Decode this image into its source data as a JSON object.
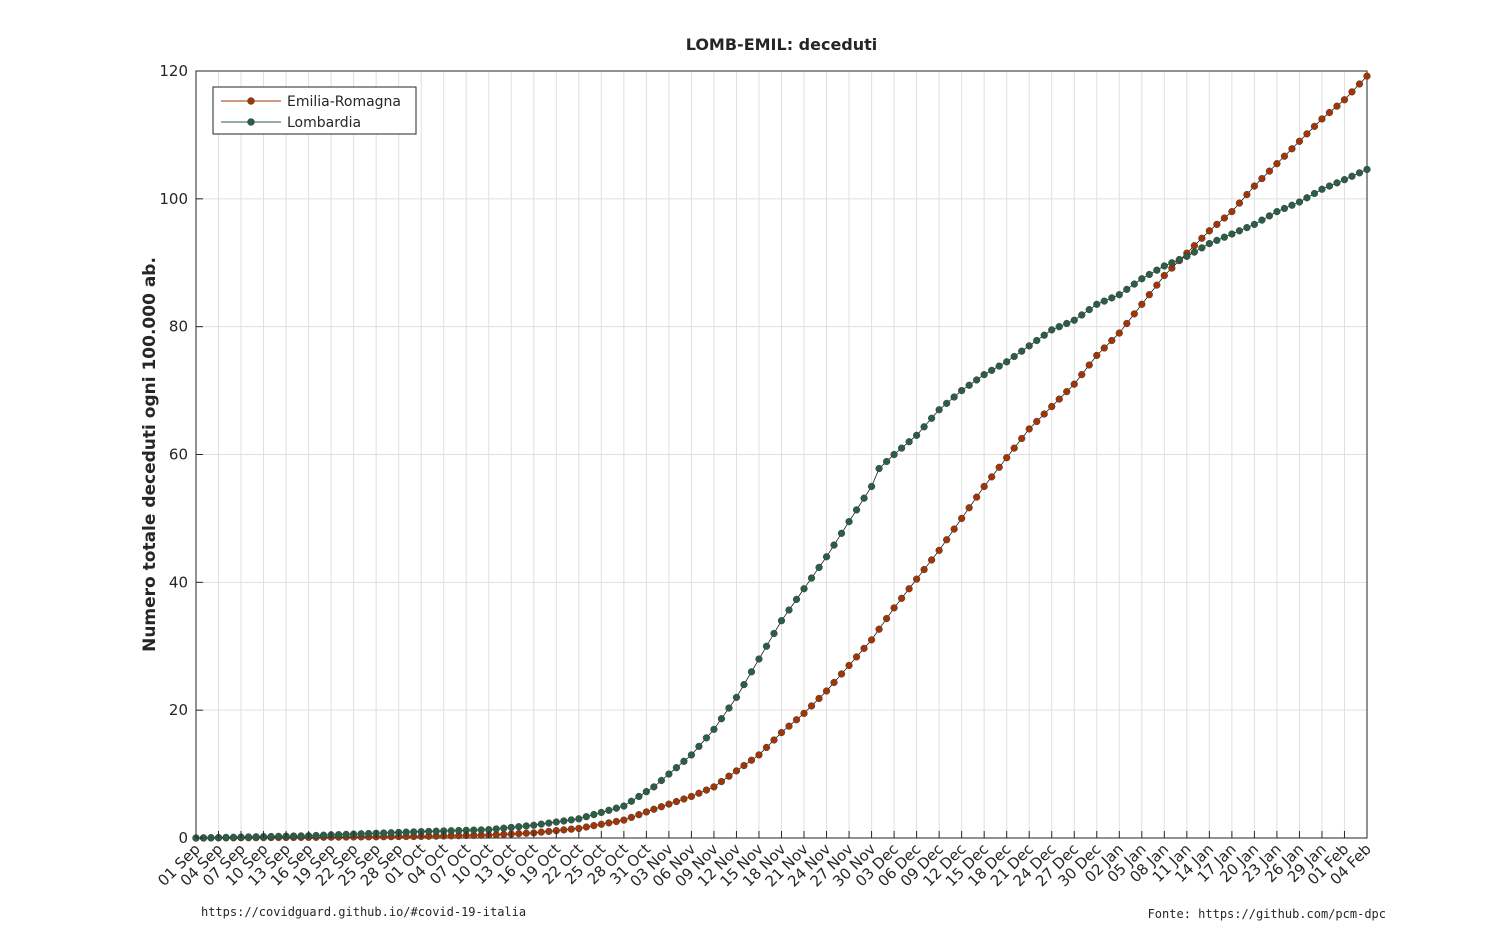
{
  "chart_data": {
    "type": "line",
    "title": "LOMB-EMIL: deceduti",
    "xlabel": "",
    "ylabel": "Numero totale deceduti ogni 100.000 ab.",
    "start_date": "2020-09-01",
    "end_date": "2021-02-04",
    "x_tick_labels": [
      "01 Sep",
      "04 Sep",
      "07 Sep",
      "10 Sep",
      "13 Sep",
      "16 Sep",
      "19 Sep",
      "22 Sep",
      "25 Sep",
      "28 Sep",
      "01 Oct",
      "04 Oct",
      "07 Oct",
      "10 Oct",
      "13 Oct",
      "16 Oct",
      "19 Oct",
      "22 Oct",
      "25 Oct",
      "28 Oct",
      "31 Oct",
      "03 Nov",
      "06 Nov",
      "09 Nov",
      "12 Nov",
      "15 Nov",
      "18 Nov",
      "21 Nov",
      "24 Nov",
      "27 Nov",
      "30 Nov",
      "03 Dec",
      "06 Dec",
      "09 Dec",
      "12 Dec",
      "15 Dec",
      "18 Dec",
      "21 Dec",
      "24 Dec",
      "27 Dec",
      "30 Dec",
      "02 Jan",
      "05 Jan",
      "08 Jan",
      "11 Jan",
      "14 Jan",
      "17 Jan",
      "20 Jan",
      "23 Jan",
      "26 Jan",
      "29 Jan",
      "01 Feb",
      "04 Feb"
    ],
    "y_ticks": [
      0,
      20,
      40,
      60,
      80,
      100,
      120
    ],
    "ylim": [
      0,
      120
    ],
    "grid": true,
    "legend_position": "top-left",
    "series": [
      {
        "name": "Emilia-Romagna",
        "color": "#a23505",
        "points": [
          [
            "2020-09-01",
            0
          ],
          [
            "2020-09-16",
            0.1
          ],
          [
            "2020-10-01",
            0.25
          ],
          [
            "2020-10-10",
            0.45
          ],
          [
            "2020-10-16",
            0.8
          ],
          [
            "2020-10-22",
            1.5
          ],
          [
            "2020-10-28",
            2.8
          ],
          [
            "2020-11-01",
            4.5
          ],
          [
            "2020-11-06",
            6.5
          ],
          [
            "2020-11-09",
            8.0
          ],
          [
            "2020-11-12",
            10.5
          ],
          [
            "2020-11-15",
            13.0
          ],
          [
            "2020-11-18",
            16.5
          ],
          [
            "2020-11-21",
            19.5
          ],
          [
            "2020-11-24",
            23.0
          ],
          [
            "2020-11-27",
            27.0
          ],
          [
            "2020-11-30",
            31.0
          ],
          [
            "2020-12-03",
            36.0
          ],
          [
            "2020-12-06",
            40.5
          ],
          [
            "2020-12-09",
            45.0
          ],
          [
            "2020-12-12",
            50.0
          ],
          [
            "2020-12-15",
            55.0
          ],
          [
            "2020-12-18",
            59.5
          ],
          [
            "2020-12-21",
            64.0
          ],
          [
            "2020-12-24",
            67.5
          ],
          [
            "2020-12-27",
            71.0
          ],
          [
            "2020-12-30",
            75.5
          ],
          [
            "2021-01-02",
            79.0
          ],
          [
            "2021-01-05",
            83.5
          ],
          [
            "2021-01-08",
            88.0
          ],
          [
            "2021-01-11",
            91.5
          ],
          [
            "2021-01-14",
            95.0
          ],
          [
            "2021-01-17",
            98.0
          ],
          [
            "2021-01-20",
            102.0
          ],
          [
            "2021-01-23",
            105.5
          ],
          [
            "2021-01-26",
            109.0
          ],
          [
            "2021-01-29",
            112.5
          ],
          [
            "2021-02-01",
            115.5
          ],
          [
            "2021-02-04",
            119.2
          ]
        ]
      },
      {
        "name": "Lombardia",
        "color": "#2a5e45",
        "points": [
          [
            "2020-09-01",
            0
          ],
          [
            "2020-09-16",
            0.35
          ],
          [
            "2020-10-01",
            1.0
          ],
          [
            "2020-10-10",
            1.3
          ],
          [
            "2020-10-16",
            2.0
          ],
          [
            "2020-10-22",
            3.0
          ],
          [
            "2020-10-28",
            5.0
          ],
          [
            "2020-11-01",
            8.0
          ],
          [
            "2020-11-06",
            13.0
          ],
          [
            "2020-11-09",
            17.0
          ],
          [
            "2020-11-12",
            22.0
          ],
          [
            "2020-11-15",
            28.0
          ],
          [
            "2020-11-18",
            34.0
          ],
          [
            "2020-11-21",
            39.0
          ],
          [
            "2020-11-24",
            44.0
          ],
          [
            "2020-11-27",
            49.5
          ],
          [
            "2020-11-30",
            55.0
          ],
          [
            "2020-12-01",
            57.8
          ],
          [
            "2020-12-03",
            60.0
          ],
          [
            "2020-12-06",
            63.0
          ],
          [
            "2020-12-09",
            67.0
          ],
          [
            "2020-12-12",
            70.0
          ],
          [
            "2020-12-15",
            72.5
          ],
          [
            "2020-12-18",
            74.5
          ],
          [
            "2020-12-21",
            77.0
          ],
          [
            "2020-12-24",
            79.5
          ],
          [
            "2020-12-27",
            81.0
          ],
          [
            "2020-12-30",
            83.5
          ],
          [
            "2021-01-02",
            85.0
          ],
          [
            "2021-01-05",
            87.5
          ],
          [
            "2021-01-08",
            89.5
          ],
          [
            "2021-01-11",
            91.0
          ],
          [
            "2021-01-14",
            93.0
          ],
          [
            "2021-01-17",
            94.5
          ],
          [
            "2021-01-20",
            96.0
          ],
          [
            "2021-01-23",
            98.0
          ],
          [
            "2021-01-26",
            99.5
          ],
          [
            "2021-01-29",
            101.5
          ],
          [
            "2021-02-01",
            103.0
          ],
          [
            "2021-02-04",
            104.6
          ]
        ]
      }
    ]
  },
  "footer": {
    "left": "https://covidguard.github.io/#covid-19-italia",
    "right": "Fonte: https://github.com/pcm-dpc"
  }
}
